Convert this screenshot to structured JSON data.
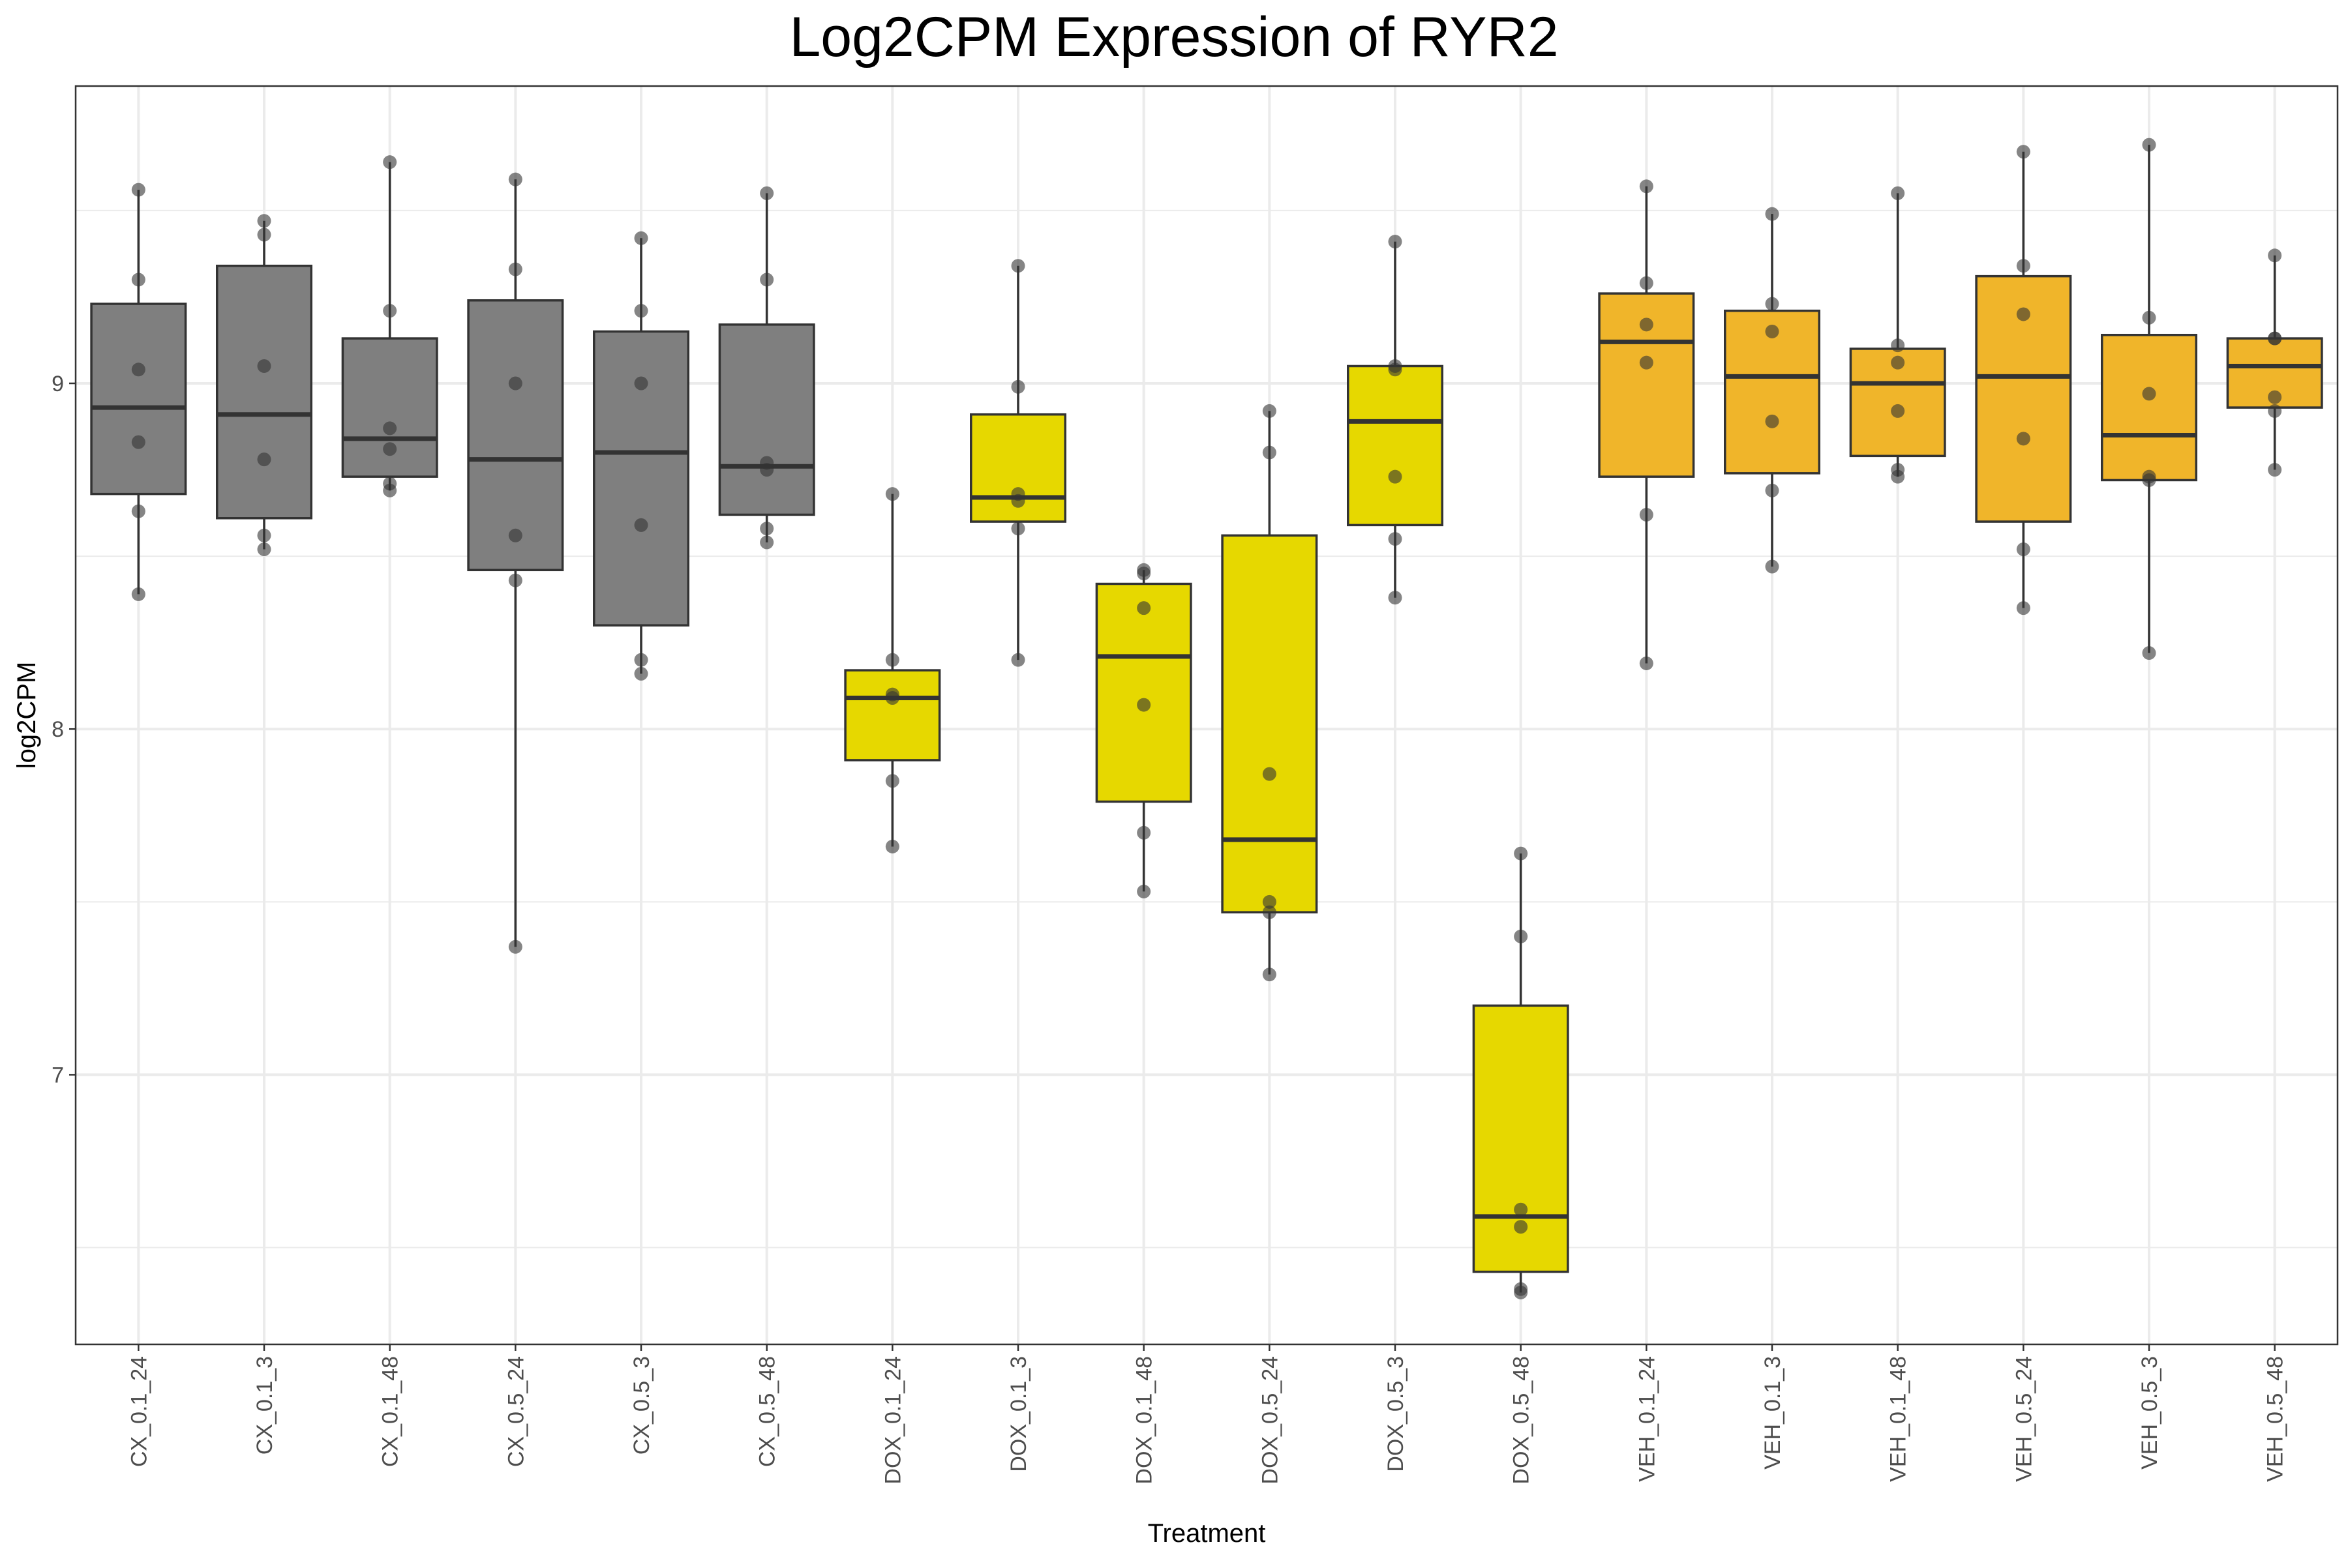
{
  "chart_data": {
    "type": "box",
    "title": "Log2CPM Expression of RYR2",
    "xlabel": "Treatment",
    "ylabel": "log2CPM",
    "ylim": [
      6.22,
      9.86
    ],
    "yticks": [
      7,
      8,
      9
    ],
    "grid": true,
    "legend": "none",
    "colors": {
      "CX": "#7f7f7f",
      "DOX": "#e6d800",
      "VEH": "#f0b52a",
      "outline": "#333333",
      "point": "#333333",
      "grid": "#ebebeb",
      "panel_border": "#333333"
    },
    "categories": [
      "CX_0.1_24",
      "CX_0.1_3",
      "CX_0.1_48",
      "CX_0.5_24",
      "CX_0.5_3",
      "CX_0.5_48",
      "DOX_0.1_24",
      "DOX_0.1_3",
      "DOX_0.1_48",
      "DOX_0.5_24",
      "DOX_0.5_3",
      "DOX_0.5_48",
      "VEH_0.1_24",
      "VEH_0.1_3",
      "VEH_0.1_48",
      "VEH_0.5_24",
      "VEH_0.5_3",
      "VEH_0.5_48"
    ],
    "boxes": [
      {
        "group": "CX",
        "whisker_low": 8.39,
        "q1": 8.68,
        "median": 8.93,
        "q3": 9.23,
        "whisker_high": 9.56,
        "points": [
          9.56,
          9.3,
          9.04,
          8.83,
          8.63,
          8.39
        ]
      },
      {
        "group": "CX",
        "whisker_low": 8.52,
        "q1": 8.61,
        "median": 8.91,
        "q3": 9.34,
        "whisker_high": 9.47,
        "points": [
          9.47,
          9.43,
          9.05,
          8.78,
          8.56,
          8.52
        ]
      },
      {
        "group": "CX",
        "whisker_low": 8.69,
        "q1": 8.73,
        "median": 8.84,
        "q3": 9.13,
        "whisker_high": 9.64,
        "points": [
          9.64,
          9.21,
          8.87,
          8.81,
          8.71,
          8.69
        ]
      },
      {
        "group": "CX",
        "whisker_low": 7.37,
        "q1": 8.46,
        "median": 8.78,
        "q3": 9.24,
        "whisker_high": 9.59,
        "points": [
          9.59,
          9.33,
          9.0,
          8.56,
          8.43,
          7.37
        ]
      },
      {
        "group": "CX",
        "whisker_low": 8.16,
        "q1": 8.3,
        "median": 8.8,
        "q3": 9.15,
        "whisker_high": 9.42,
        "points": [
          9.42,
          9.21,
          9.0,
          8.59,
          8.2,
          8.16
        ]
      },
      {
        "group": "CX",
        "whisker_low": 8.54,
        "q1": 8.62,
        "median": 8.76,
        "q3": 9.17,
        "whisker_high": 9.55,
        "points": [
          9.55,
          9.3,
          8.77,
          8.75,
          8.58,
          8.54
        ]
      },
      {
        "group": "DOX",
        "whisker_low": 7.66,
        "q1": 7.91,
        "median": 8.09,
        "q3": 8.17,
        "whisker_high": 8.68,
        "points": [
          8.68,
          8.2,
          8.1,
          8.09,
          7.85,
          7.66
        ]
      },
      {
        "group": "DOX",
        "whisker_low": 8.2,
        "q1": 8.6,
        "median": 8.67,
        "q3": 8.91,
        "whisker_high": 9.34,
        "points": [
          9.34,
          8.99,
          8.68,
          8.66,
          8.58,
          8.2
        ]
      },
      {
        "group": "DOX",
        "whisker_low": 7.53,
        "q1": 7.79,
        "median": 8.21,
        "q3": 8.42,
        "whisker_high": 8.46,
        "points": [
          8.46,
          8.45,
          8.35,
          8.07,
          7.7,
          7.53
        ]
      },
      {
        "group": "DOX",
        "whisker_low": 7.29,
        "q1": 7.47,
        "median": 7.68,
        "q3": 8.56,
        "whisker_high": 8.92,
        "points": [
          8.92,
          8.8,
          7.87,
          7.5,
          7.47,
          7.29
        ]
      },
      {
        "group": "DOX",
        "whisker_low": 8.38,
        "q1": 8.59,
        "median": 8.89,
        "q3": 9.05,
        "whisker_high": 9.41,
        "points": [
          9.41,
          9.05,
          9.04,
          8.73,
          8.55,
          8.38
        ]
      },
      {
        "group": "DOX",
        "whisker_low": 6.37,
        "q1": 6.43,
        "median": 6.59,
        "q3": 7.2,
        "whisker_high": 7.64,
        "points": [
          7.64,
          7.4,
          6.61,
          6.56,
          6.38,
          6.37
        ]
      },
      {
        "group": "VEH",
        "whisker_low": 8.19,
        "q1": 8.73,
        "median": 9.12,
        "q3": 9.26,
        "whisker_high": 9.57,
        "points": [
          9.57,
          9.29,
          9.17,
          9.06,
          8.62,
          8.19
        ]
      },
      {
        "group": "VEH",
        "whisker_low": 8.47,
        "q1": 8.74,
        "median": 9.02,
        "q3": 9.21,
        "whisker_high": 9.49,
        "points": [
          9.49,
          9.23,
          9.15,
          8.89,
          8.69,
          8.47
        ]
      },
      {
        "group": "VEH",
        "whisker_low": 8.73,
        "q1": 8.79,
        "median": 9.0,
        "q3": 9.1,
        "whisker_high": 9.55,
        "points": [
          9.55,
          9.11,
          9.06,
          8.92,
          8.75,
          8.73
        ]
      },
      {
        "group": "VEH",
        "whisker_low": 8.35,
        "q1": 8.6,
        "median": 9.02,
        "q3": 9.31,
        "whisker_high": 9.67,
        "points": [
          9.67,
          9.34,
          9.2,
          8.84,
          8.52,
          8.35
        ]
      },
      {
        "group": "VEH",
        "whisker_low": 8.22,
        "q1": 8.72,
        "median": 8.85,
        "q3": 9.14,
        "whisker_high": 9.69,
        "points": [
          9.69,
          9.19,
          8.97,
          8.73,
          8.72,
          8.22
        ]
      },
      {
        "group": "VEH",
        "whisker_low": 8.75,
        "q1": 8.93,
        "median": 9.05,
        "q3": 9.13,
        "whisker_high": 9.37,
        "points": [
          9.37,
          9.13,
          9.13,
          8.96,
          8.92,
          8.75
        ]
      }
    ]
  }
}
